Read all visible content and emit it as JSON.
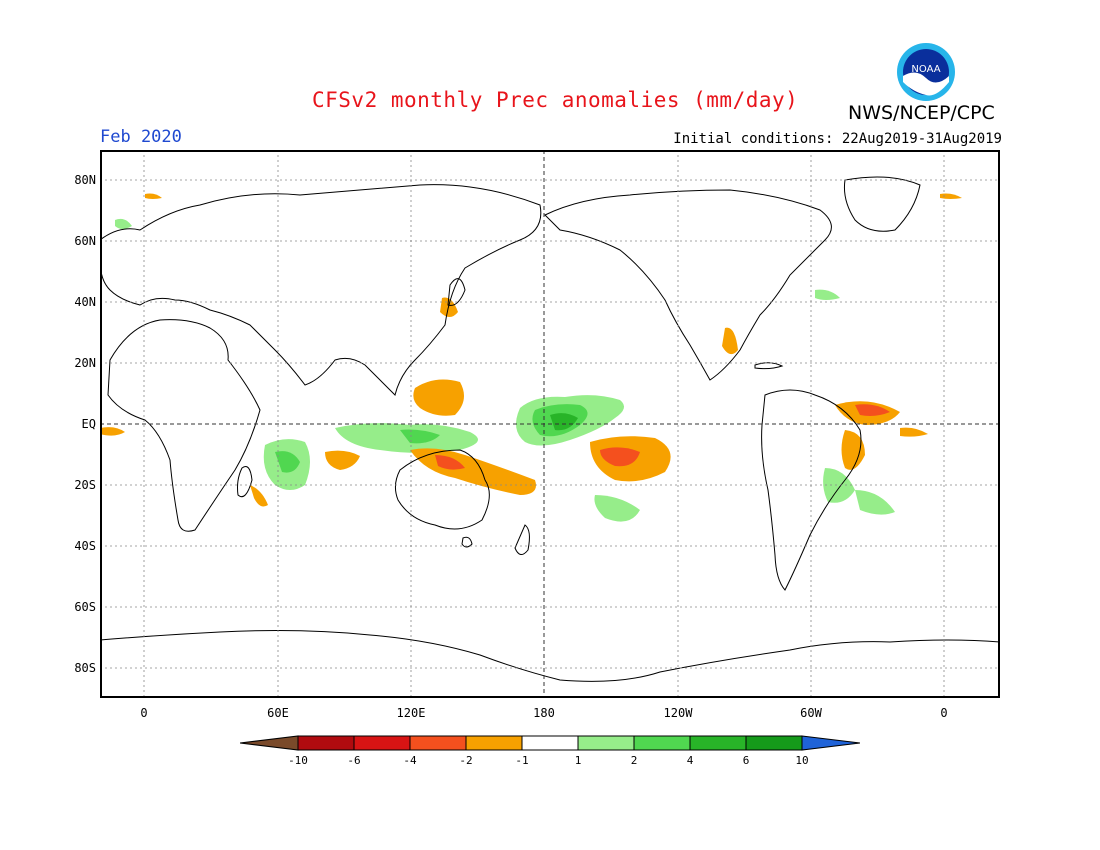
{
  "title": "CFSv2 monthly Prec anomalies (mm/day)",
  "month": "Feb 2020",
  "initial_conditions": "Initial conditions: 22Aug2019-31Aug2019",
  "agency": "NWS/NCEP/CPC",
  "logo_text": "NOAA",
  "lat_labels": [
    "80N",
    "60N",
    "40N",
    "20N",
    "EQ",
    "20S",
    "40S",
    "60S",
    "80S"
  ],
  "lon_labels": [
    "0",
    "60E",
    "120E",
    "180",
    "120W",
    "60W",
    "0"
  ],
  "colorbar": {
    "labels": [
      "-10",
      "-6",
      "-4",
      "-2",
      "-1",
      "1",
      "2",
      "4",
      "6",
      "10"
    ],
    "colors": [
      "#7a4a2a",
      "#b00b0f",
      "#d81414",
      "#f4501e",
      "#f7a100",
      "#ffffff",
      "#96ed8a",
      "#50d750",
      "#28b428",
      "#159a1a",
      "#1f63d8"
    ]
  }
}
